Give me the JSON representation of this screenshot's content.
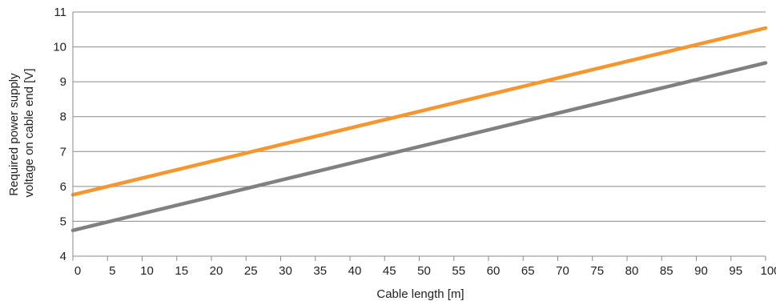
{
  "chart_data": {
    "type": "line",
    "xlabel": "Cable length [m]",
    "ylabel": [
      "Required power supply",
      "voltage on cable end [V]"
    ],
    "xlim": [
      0,
      100
    ],
    "ylim": [
      4,
      11
    ],
    "x_ticks": [
      0,
      5,
      10,
      15,
      20,
      25,
      30,
      35,
      40,
      45,
      50,
      55,
      60,
      65,
      70,
      75,
      80,
      85,
      90,
      95,
      100
    ],
    "y_ticks": [
      4,
      5,
      6,
      7,
      8,
      9,
      10,
      11
    ],
    "grid": "horizontal",
    "legend": "none",
    "series": [
      {
        "color": "#f7962e",
        "x": [
          0,
          100
        ],
        "values": [
          5.76,
          10.54
        ]
      },
      {
        "color": "#808080",
        "x": [
          0,
          100
        ],
        "values": [
          4.74,
          9.54
        ]
      }
    ]
  }
}
